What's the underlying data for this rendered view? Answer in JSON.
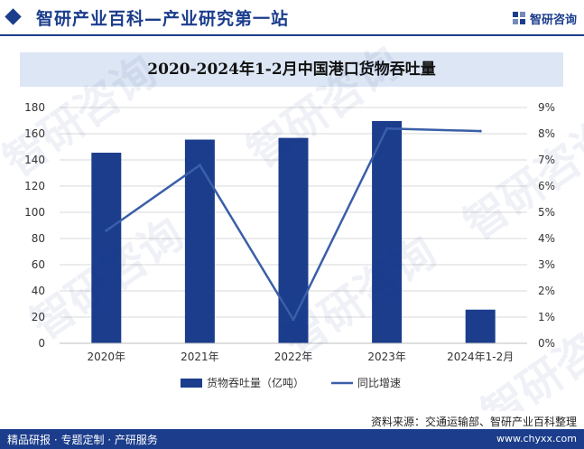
{
  "header": {
    "brand_title": "智研产业百科—产业研究第一站",
    "logo_text": "智研咨询"
  },
  "watermark": "智研咨询",
  "chart_data": {
    "type": "bar",
    "title": "2020-2024年1-2月中国港口货物吞吐量",
    "categories": [
      "2020年",
      "2021年",
      "2022年",
      "2023年",
      "2024年1-2月"
    ],
    "series": [
      {
        "name": "货物吞吐量（亿吨）",
        "kind": "bar",
        "axis": "left",
        "color": "#1b3d8c",
        "values": [
          145.5,
          155.5,
          156.8,
          169.7,
          25.7
        ]
      },
      {
        "name": "同比增速",
        "kind": "line",
        "axis": "right",
        "color": "#3a5fa8",
        "values": [
          4.3,
          6.8,
          0.9,
          8.2,
          8.1
        ]
      }
    ],
    "y_left": {
      "ticks": [
        "0",
        "20",
        "40",
        "60",
        "80",
        "100",
        "120",
        "140",
        "160",
        "180"
      ],
      "ylim": [
        0,
        180
      ]
    },
    "y_right": {
      "ticks": [
        "0%",
        "1%",
        "2%",
        "3%",
        "4%",
        "5%",
        "6%",
        "7%",
        "8%",
        "9%"
      ],
      "ylim": [
        0,
        9
      ]
    },
    "grid": true,
    "legend_position": "bottom"
  },
  "footer": {
    "source": "资料来源：交通运输部、智研产业百科整理",
    "services": "精品研报 · 专题定制 · 产研服务",
    "site": "www.chyxx.com"
  }
}
